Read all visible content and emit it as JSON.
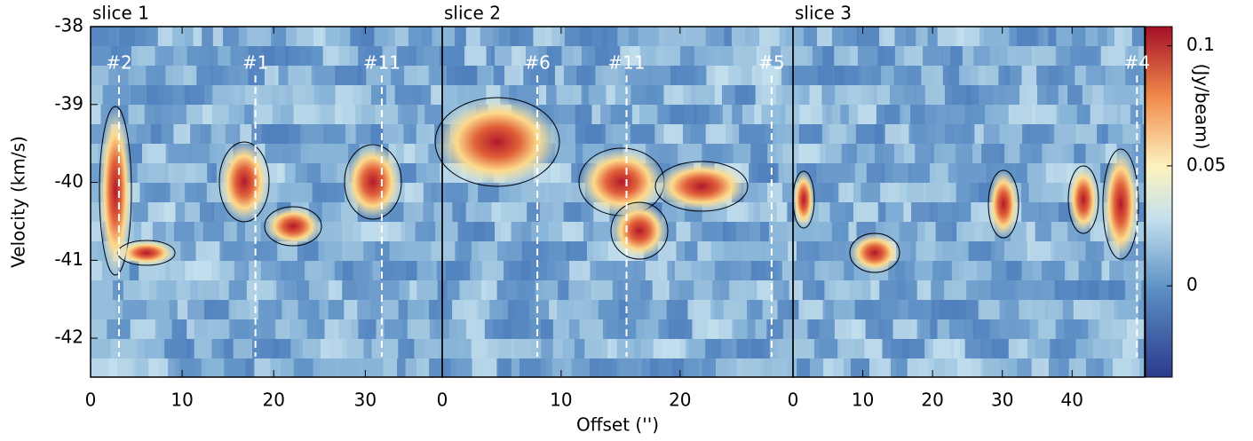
{
  "chart_data": [
    {
      "type": "heatmap",
      "title": "slice 1",
      "xlim": [
        0,
        38.4
      ],
      "xticks": [
        0,
        10,
        20,
        30
      ],
      "ylim": [
        -42.5,
        -38
      ],
      "yticks": [
        -38,
        -39,
        -40,
        -41,
        -42
      ],
      "markers": [
        {
          "label": "#2",
          "x": 3.1
        },
        {
          "label": "#1",
          "x": 18.0
        },
        {
          "label": "#11",
          "x": 31.8
        }
      ],
      "ylabel": "Velocity (km/s)"
    },
    {
      "type": "heatmap",
      "title": "slice 2",
      "xlim": [
        0,
        29.5
      ],
      "xticks": [
        0,
        10,
        20
      ],
      "ylim": [
        -42.5,
        -38
      ],
      "markers": [
        {
          "label": "#6",
          "x": 8.0
        },
        {
          "label": "#11",
          "x": 15.5
        },
        {
          "label": "#5",
          "x": 27.7
        }
      ],
      "xlabel": "Offset ('')"
    },
    {
      "type": "heatmap",
      "title": "slice 3",
      "xlim": [
        0,
        50.4
      ],
      "xticks": [
        0,
        10,
        20,
        30,
        40
      ],
      "ylim": [
        -42.5,
        -38
      ],
      "markers": [
        {
          "label": "#4",
          "x": 49.3
        }
      ]
    },
    {
      "type": "colorbar",
      "label": "(Jy/beam)",
      "clim": [
        -0.038,
        0.108
      ],
      "cticks": [
        0,
        0.05,
        0.1
      ]
    }
  ]
}
